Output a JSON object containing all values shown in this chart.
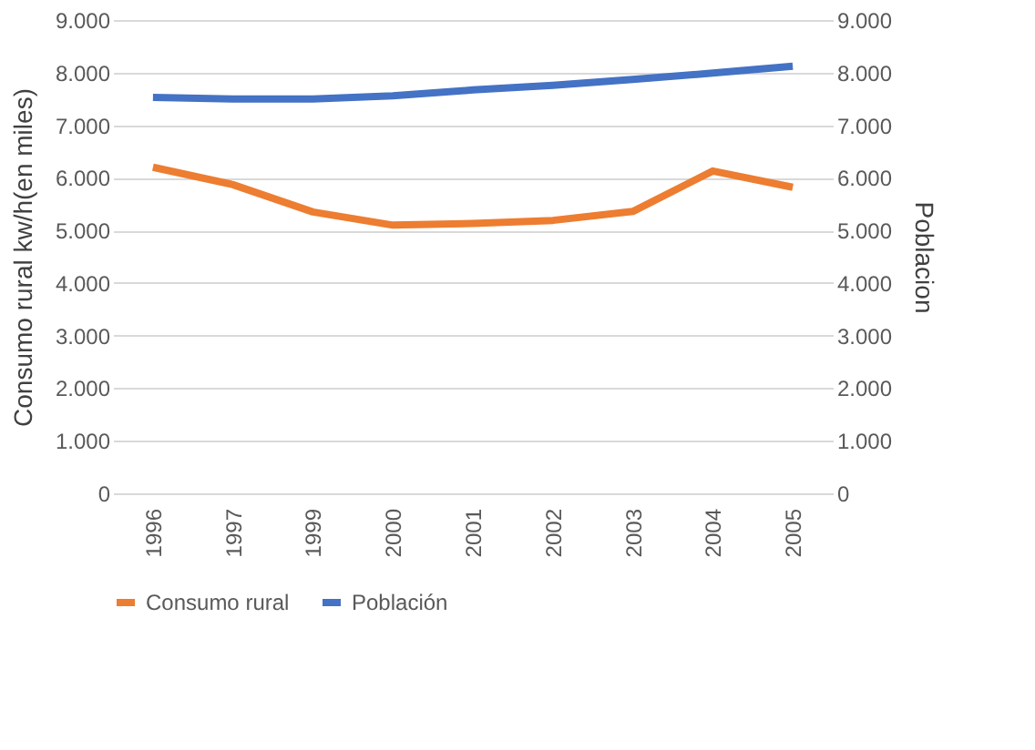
{
  "chart_data": {
    "type": "line",
    "ylabel": "Consumo rural kw/h(en miles)",
    "y2label": "Poblacion",
    "categories": [
      "1996",
      "1997",
      "1999",
      "2000",
      "2001",
      "2002",
      "2003",
      "2004",
      "2005"
    ],
    "series": [
      {
        "name": "Consumo rural",
        "color": "#ed7d31",
        "values": [
          6200,
          5870,
          5350,
          5100,
          5130,
          5190,
          5360,
          6130,
          5820
        ]
      },
      {
        "name": "Población",
        "color": "#4472c4",
        "axis": "y2",
        "values": [
          7530,
          7500,
          7500,
          7560,
          7670,
          7760,
          7870,
          7990,
          8120
        ]
      }
    ],
    "ylim": [
      0,
      9000
    ],
    "yticks": [
      0,
      {
        "value": 1000,
        "label": "1.000"
      },
      {
        "value": 2000,
        "label": "2.000"
      },
      {
        "value": 3000,
        "label": "3.000"
      },
      {
        "value": 4000,
        "label": "4.000"
      },
      {
        "value": 5000,
        "label": "5.000"
      },
      {
        "value": 6000,
        "label": "6.000"
      },
      {
        "value": 7000,
        "label": "7.000"
      },
      {
        "value": 8000,
        "label": "8.000"
      },
      {
        "value": 9000,
        "label": "9.000"
      }
    ],
    "y2lim": [
      0,
      9000
    ],
    "y2ticks": [
      0,
      {
        "value": 1000,
        "label": "1.000"
      },
      {
        "value": 2000,
        "label": "2.000"
      },
      {
        "value": 3000,
        "label": "3.000"
      },
      {
        "value": 4000,
        "label": "4.000"
      },
      {
        "value": 5000,
        "label": "5.000"
      },
      {
        "value": 6000,
        "label": "6.000"
      },
      {
        "value": 7000,
        "label": "7.000"
      },
      {
        "value": 8000,
        "label": "8.000"
      },
      {
        "value": 9000,
        "label": "9.000"
      }
    ],
    "grid": "y",
    "legend": "bottom",
    "marker": "none",
    "line_style": "solid"
  }
}
